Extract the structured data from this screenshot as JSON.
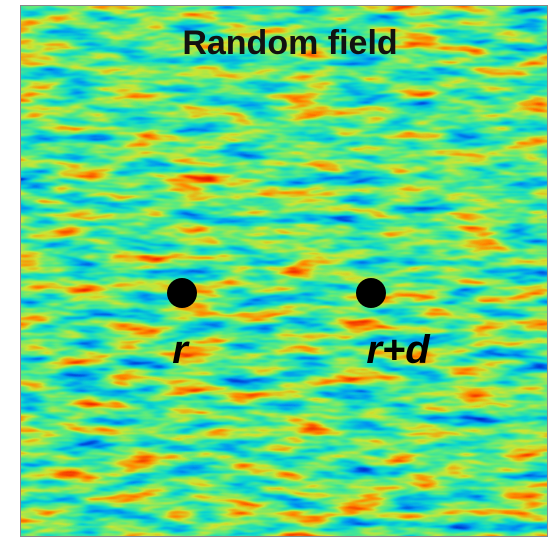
{
  "title": "Random field",
  "points": [
    {
      "label": "r"
    },
    {
      "label": "r+d"
    }
  ]
}
